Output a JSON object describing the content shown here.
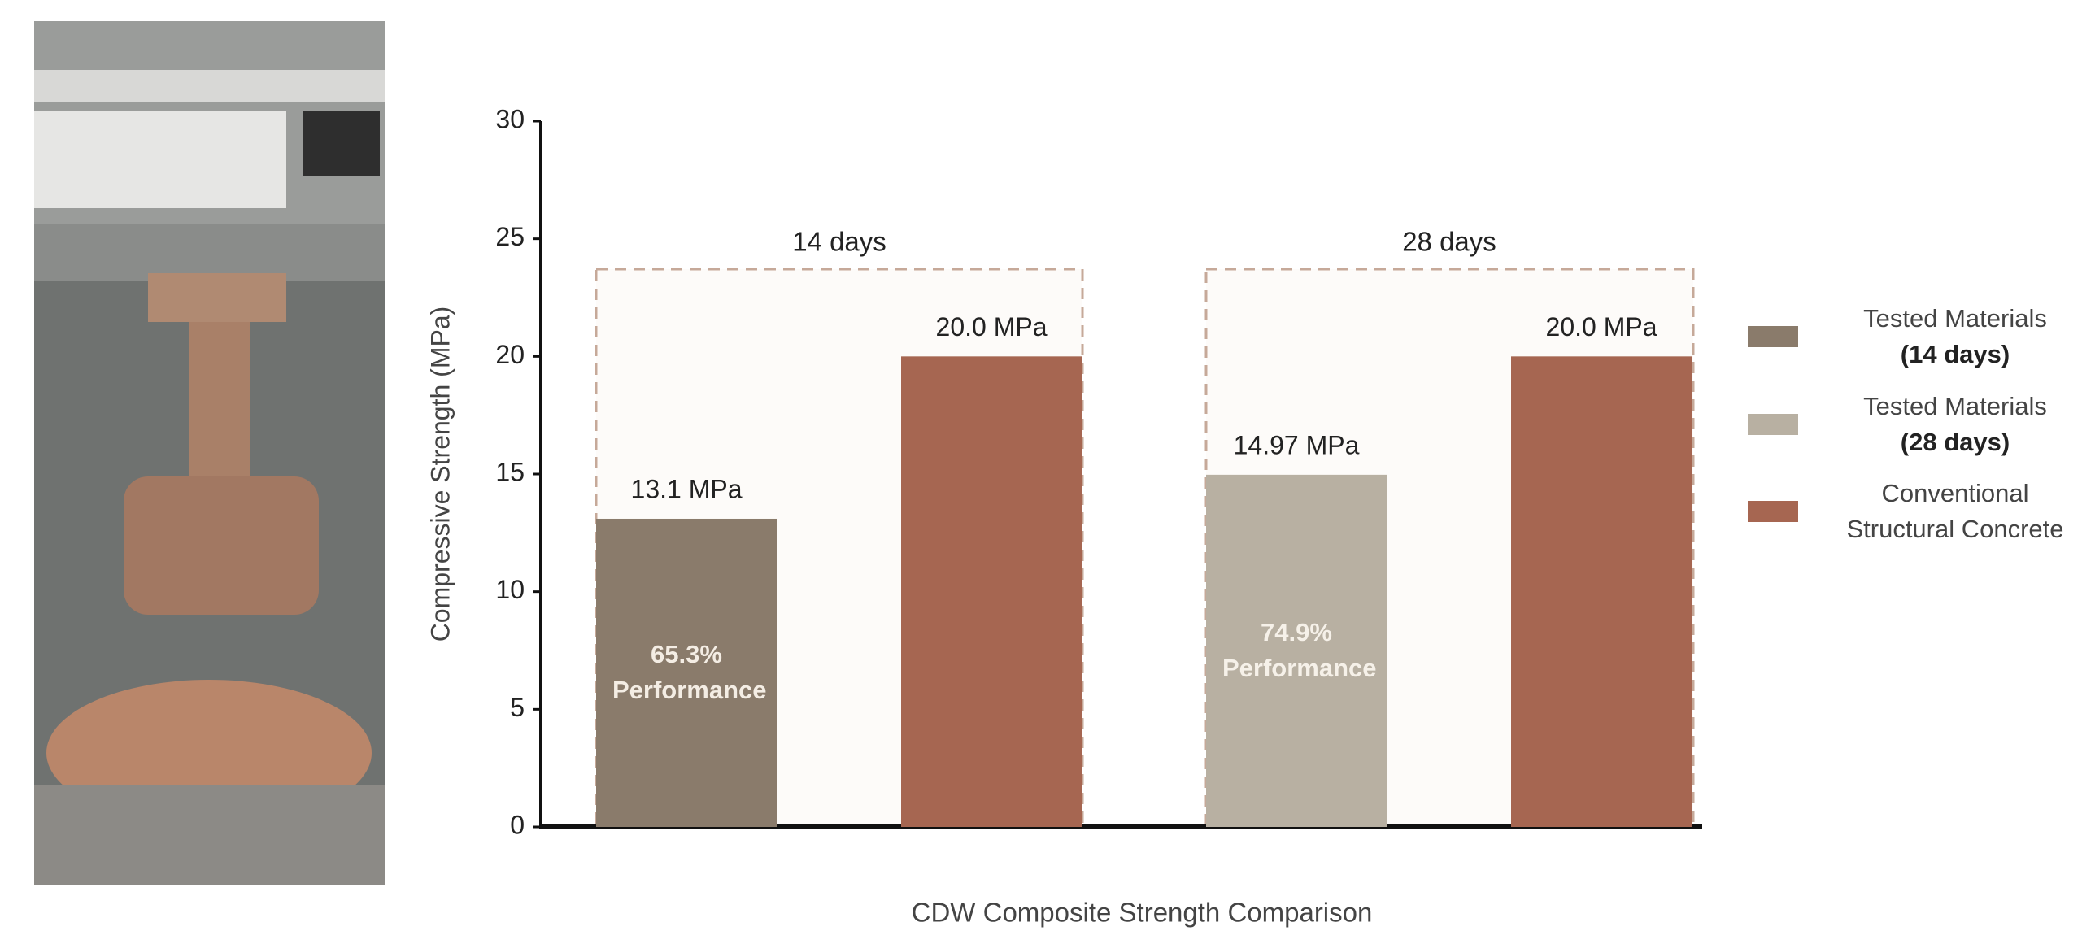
{
  "chart_data": {
    "type": "bar",
    "categories": [
      "14 days",
      "28 days"
    ],
    "series": [
      {
        "name": "Tested Materials (14 days)",
        "color": "#8a7b6b",
        "values": [
          13.1,
          null
        ],
        "value_labels": [
          "13.1 MPa",
          null
        ]
      },
      {
        "name": "Tested Materials (28 days)",
        "color": "#b8b0a2",
        "values": [
          null,
          14.97
        ],
        "value_labels": [
          null,
          "14.97 MPa"
        ]
      },
      {
        "name": "Conventional Structural Concrete",
        "color": "#a66651",
        "values": [
          20.0,
          20.0
        ],
        "value_labels": [
          "20.0 MPa",
          "20.0 MPa"
        ]
      }
    ],
    "annotations": [
      {
        "text": "65.3% Performance",
        "series": 0,
        "category": 0,
        "color": "#f4ede4"
      },
      {
        "text": "74.9% Performance",
        "series": 1,
        "category": 1,
        "color": "#f6f1e9"
      }
    ],
    "ylabel": "Compressive Strength (MPa)",
    "xlabel": "CDW Composite Strength Comparison",
    "ylim": [
      0,
      30
    ],
    "yticks": [
      0,
      5,
      10,
      15,
      20,
      25,
      30
    ],
    "legend": "right"
  }
}
